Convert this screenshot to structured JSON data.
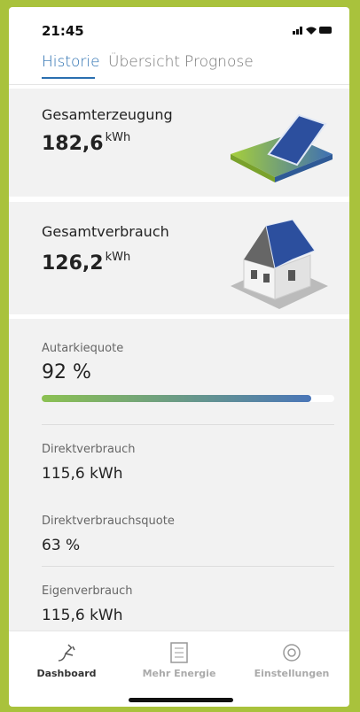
{
  "status_bar": {
    "time": "21:45"
  },
  "tabs": [
    "Historie",
    "Übersicht",
    "Prognose"
  ],
  "cards": [
    {
      "title": "Gesamterzeugung",
      "value": "182,6",
      "unit": "kWh"
    },
    {
      "title": "Gesamtverbrauch",
      "value": "126,2",
      "unit": "kWh"
    }
  ],
  "autarky": {
    "title": "Autarkiequote",
    "value": 92,
    "label": "92 %"
  },
  "stats": [
    {
      "label": "Direktverbrauch",
      "value": "115,6 kWh"
    },
    {
      "label": "Direktverbrauchsquote",
      "value": "63 %"
    },
    {
      "label": "Eigenverbrauch",
      "value": "115,6 kWh"
    }
  ],
  "nav": [
    "Dashboard",
    "Mehr Energie",
    "Einstellungen"
  ]
}
